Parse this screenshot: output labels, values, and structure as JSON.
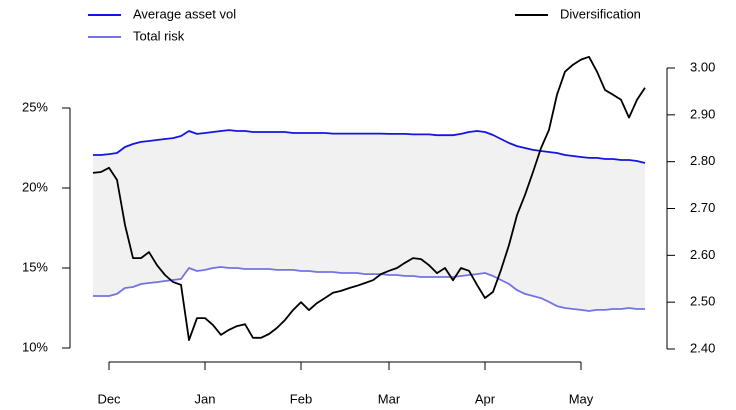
{
  "chart_data": {
    "type": "line",
    "categories": [
      null,
      null,
      "Dec",
      null,
      null,
      null,
      null,
      null,
      null,
      null,
      null,
      null,
      null,
      null,
      "Jan",
      null,
      null,
      null,
      null,
      null,
      null,
      null,
      null,
      null,
      null,
      null,
      "Feb",
      null,
      null,
      null,
      null,
      null,
      null,
      null,
      null,
      null,
      null,
      "Mar",
      null,
      null,
      null,
      null,
      null,
      null,
      null,
      null,
      null,
      null,
      null,
      "Apr",
      null,
      null,
      null,
      null,
      null,
      null,
      null,
      null,
      null,
      null,
      null,
      "May",
      null,
      null,
      null,
      null,
      null,
      null,
      null,
      null
    ],
    "series": [
      {
        "name": "Average asset vol",
        "color": "#1515e0",
        "axis": "y",
        "values": [
          22.06,
          22.06,
          22.12,
          22.19,
          22.56,
          22.75,
          22.88,
          22.94,
          23.0,
          23.06,
          23.12,
          23.25,
          23.56,
          23.38,
          23.44,
          23.5,
          23.56,
          23.62,
          23.56,
          23.56,
          23.5,
          23.5,
          23.5,
          23.5,
          23.5,
          23.44,
          23.44,
          23.44,
          23.44,
          23.44,
          23.4,
          23.4,
          23.4,
          23.4,
          23.4,
          23.4,
          23.4,
          23.38,
          23.38,
          23.38,
          23.35,
          23.35,
          23.35,
          23.3,
          23.3,
          23.3,
          23.38,
          23.5,
          23.56,
          23.5,
          23.31,
          23.06,
          22.81,
          22.62,
          22.5,
          22.38,
          22.31,
          22.25,
          22.19,
          22.06,
          22.0,
          21.94,
          21.88,
          21.88,
          21.81,
          21.81,
          21.75,
          21.75,
          21.69,
          21.56
        ]
      },
      {
        "name": "Total risk",
        "color": "#7373e6",
        "axis": "y",
        "values": [
          13.25,
          13.25,
          13.25,
          13.38,
          13.75,
          13.81,
          14.0,
          14.06,
          14.12,
          14.19,
          14.25,
          14.31,
          15.0,
          14.81,
          14.88,
          15.0,
          15.06,
          15.0,
          15.0,
          14.94,
          14.94,
          14.94,
          14.94,
          14.88,
          14.88,
          14.88,
          14.81,
          14.81,
          14.75,
          14.75,
          14.75,
          14.69,
          14.69,
          14.69,
          14.62,
          14.62,
          14.62,
          14.56,
          14.56,
          14.5,
          14.5,
          14.44,
          14.44,
          14.44,
          14.44,
          14.44,
          14.5,
          14.56,
          14.62,
          14.69,
          14.5,
          14.25,
          14.0,
          13.62,
          13.38,
          13.25,
          13.12,
          12.88,
          12.62,
          12.5,
          12.44,
          12.38,
          12.31,
          12.38,
          12.38,
          12.44,
          12.44,
          12.5,
          12.44,
          12.44
        ]
      },
      {
        "name": "Diversification",
        "color": "#000000",
        "axis": "y2",
        "values": [
          2.776,
          2.778,
          2.787,
          2.761,
          2.665,
          2.594,
          2.594,
          2.607,
          2.579,
          2.558,
          2.543,
          2.537,
          2.419,
          2.466,
          2.466,
          2.451,
          2.43,
          2.441,
          2.449,
          2.453,
          2.424,
          2.424,
          2.432,
          2.445,
          2.462,
          2.483,
          2.5,
          2.483,
          2.498,
          2.509,
          2.52,
          2.524,
          2.53,
          2.535,
          2.541,
          2.547,
          2.56,
          2.567,
          2.573,
          2.584,
          2.594,
          2.592,
          2.579,
          2.562,
          2.573,
          2.547,
          2.573,
          2.567,
          2.537,
          2.509,
          2.522,
          2.569,
          2.622,
          2.686,
          2.729,
          2.778,
          2.829,
          2.868,
          2.943,
          2.992,
          3.007,
          3.018,
          3.024,
          2.992,
          2.953,
          2.943,
          2.932,
          2.894,
          2.932,
          2.958
        ]
      }
    ],
    "ylim": [
      10,
      25
    ],
    "yticks": [
      {
        "value": 10,
        "label": "10%"
      },
      {
        "value": 15,
        "label": "15%"
      },
      {
        "value": 20,
        "label": "20%"
      },
      {
        "value": 25,
        "label": "25%"
      }
    ],
    "y2lim": [
      2.4,
      3.0
    ],
    "y2ticks": [
      {
        "value": 2.4,
        "label": "2.40"
      },
      {
        "value": 2.5,
        "label": "2.50"
      },
      {
        "value": 2.6,
        "label": "2.60"
      },
      {
        "value": 2.7,
        "label": "2.70"
      },
      {
        "value": 2.8,
        "label": "2.80"
      },
      {
        "value": 2.9,
        "label": "2.90"
      },
      {
        "value": 3.0,
        "label": "3.00"
      }
    ],
    "fill_between": {
      "series": [
        0,
        1
      ],
      "color": "#f1f1f1"
    },
    "grid": false
  }
}
